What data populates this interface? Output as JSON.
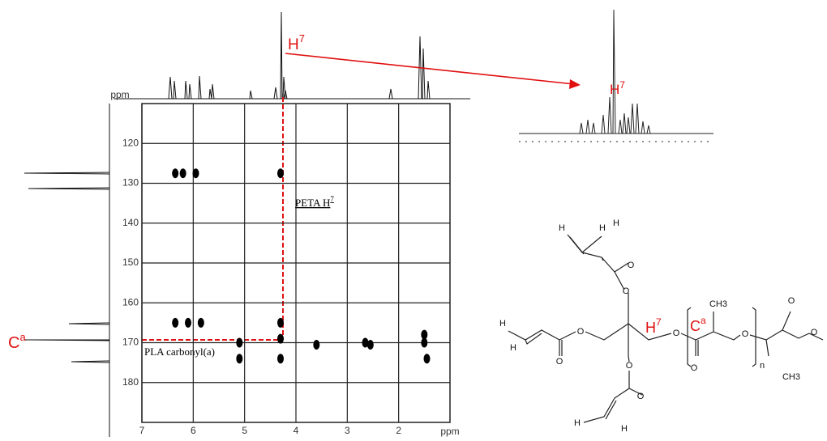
{
  "chart_data": {
    "type": "scatter",
    "x_label": "ppm",
    "y_label": "ppm",
    "x": [
      6.35,
      6.2,
      5.95,
      4.3,
      6.35,
      6.1,
      5.85,
      5.1,
      5.1,
      4.3,
      4.3,
      4.3,
      3.6,
      2.65,
      2.55,
      1.5,
      1.5,
      1.45
    ],
    "values": [
      127.5,
      127.5,
      127.5,
      127.5,
      165,
      165,
      165,
      170,
      174,
      165,
      169,
      174,
      170.5,
      170,
      170.5,
      168,
      170,
      174
    ],
    "color": "#000000",
    "xlim": [
      7,
      1
    ],
    "xticks": [
      7,
      6,
      5,
      4,
      3,
      2
    ],
    "ylim": [
      110,
      190
    ],
    "yticks": [
      120,
      130,
      140,
      150,
      160,
      170,
      180
    ],
    "grid": true
  },
  "annotations": {
    "peta": {
      "text": "PETA H",
      "sup": "7"
    },
    "pla": "PLA carbonyl(a)",
    "h7_top": {
      "text": "H",
      "sup": "7"
    },
    "h7_inset": {
      "text": "H",
      "sup": "7"
    },
    "ca_left": {
      "text": "C",
      "sup": "a"
    }
  },
  "structure": {
    "labels": [
      "H",
      "H",
      "O",
      "O",
      "H",
      "H",
      "O",
      "O",
      "O",
      "O",
      "H",
      "H",
      "O",
      "CH3",
      "O",
      "O",
      "n",
      "O",
      "CH3",
      "O",
      "H"
    ],
    "h7": {
      "text": "H",
      "sup": "7"
    },
    "ca": {
      "text": "C",
      "sup": "a"
    }
  }
}
